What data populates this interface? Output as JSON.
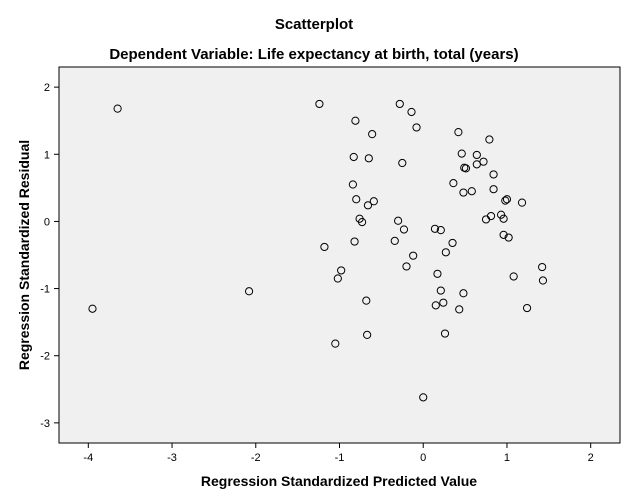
{
  "chart_data": {
    "type": "scatter",
    "title": "Scatterplot",
    "subtitle": "Dependent Variable: Life expectancy at birth, total (years)",
    "xlabel": "Regression Standardized Predicted Value",
    "ylabel": "Regression Standardized Residual",
    "xlim": [
      -4.35,
      2.35
    ],
    "ylim": [
      -3.3,
      2.3
    ],
    "xticks": [
      "-4",
      "-3",
      "-2",
      "-1",
      "0",
      "1",
      "2"
    ],
    "yticks": [
      "2",
      "1",
      "0",
      "-1",
      "-2",
      "-3"
    ],
    "grid": false,
    "points": [
      {
        "x": -3.65,
        "y": 1.68
      },
      {
        "x": -3.95,
        "y": -1.3
      },
      {
        "x": -2.08,
        "y": -1.04
      },
      {
        "x": -1.24,
        "y": 1.75
      },
      {
        "x": -1.18,
        "y": -0.38
      },
      {
        "x": -1.05,
        "y": -1.82
      },
      {
        "x": -1.02,
        "y": -0.85
      },
      {
        "x": -0.98,
        "y": -0.73
      },
      {
        "x": -0.83,
        "y": 0.96
      },
      {
        "x": -0.84,
        "y": 0.55
      },
      {
        "x": -0.81,
        "y": 1.5
      },
      {
        "x": -0.8,
        "y": 0.33
      },
      {
        "x": -0.82,
        "y": -0.3
      },
      {
        "x": -0.76,
        "y": 0.04
      },
      {
        "x": -0.73,
        "y": -0.01
      },
      {
        "x": -0.66,
        "y": 0.24
      },
      {
        "x": -0.65,
        "y": 0.94
      },
      {
        "x": -0.61,
        "y": 1.3
      },
      {
        "x": -0.59,
        "y": 0.3
      },
      {
        "x": -0.68,
        "y": -1.18
      },
      {
        "x": -0.67,
        "y": -1.69
      },
      {
        "x": -0.28,
        "y": 1.75
      },
      {
        "x": -0.25,
        "y": 0.87
      },
      {
        "x": -0.14,
        "y": 1.63
      },
      {
        "x": -0.08,
        "y": 1.4
      },
      {
        "x": -0.3,
        "y": 0.01
      },
      {
        "x": -0.34,
        "y": -0.29
      },
      {
        "x": -0.23,
        "y": -0.12
      },
      {
        "x": -0.12,
        "y": -0.51
      },
      {
        "x": -0.2,
        "y": -0.67
      },
      {
        "x": 0.0,
        "y": -2.62
      },
      {
        "x": 0.14,
        "y": -0.11
      },
      {
        "x": 0.21,
        "y": -0.13
      },
      {
        "x": 0.17,
        "y": -0.78
      },
      {
        "x": 0.21,
        "y": -1.03
      },
      {
        "x": 0.15,
        "y": -1.25
      },
      {
        "x": 0.24,
        "y": -1.21
      },
      {
        "x": 0.26,
        "y": -1.67
      },
      {
        "x": 0.27,
        "y": -0.46
      },
      {
        "x": 0.35,
        "y": -0.32
      },
      {
        "x": 0.43,
        "y": -1.31
      },
      {
        "x": 0.48,
        "y": -1.07
      },
      {
        "x": 0.42,
        "y": 1.33
      },
      {
        "x": 0.46,
        "y": 1.01
      },
      {
        "x": 0.49,
        "y": 0.8
      },
      {
        "x": 0.51,
        "y": 0.79
      },
      {
        "x": 0.48,
        "y": 0.43
      },
      {
        "x": 0.36,
        "y": 0.57
      },
      {
        "x": 0.58,
        "y": 0.45
      },
      {
        "x": 0.64,
        "y": 0.99
      },
      {
        "x": 0.64,
        "y": 0.85
      },
      {
        "x": 0.72,
        "y": 0.89
      },
      {
        "x": 0.79,
        "y": 1.22
      },
      {
        "x": 0.84,
        "y": 0.7
      },
      {
        "x": 0.84,
        "y": 0.48
      },
      {
        "x": 0.75,
        "y": 0.03
      },
      {
        "x": 0.81,
        "y": 0.08
      },
      {
        "x": 0.93,
        "y": 0.1
      },
      {
        "x": 0.96,
        "y": 0.04
      },
      {
        "x": 0.98,
        "y": 0.31
      },
      {
        "x": 1.0,
        "y": 0.33
      },
      {
        "x": 0.96,
        "y": -0.2
      },
      {
        "x": 1.02,
        "y": -0.24
      },
      {
        "x": 1.08,
        "y": -0.82
      },
      {
        "x": 1.18,
        "y": 0.28
      },
      {
        "x": 1.24,
        "y": -1.29
      },
      {
        "x": 1.42,
        "y": -0.68
      },
      {
        "x": 1.43,
        "y": -0.88
      }
    ]
  },
  "colors": {
    "plot_background": "#f0f0f0",
    "marker_stroke": "#000000",
    "page_background": "#ffffff"
  }
}
